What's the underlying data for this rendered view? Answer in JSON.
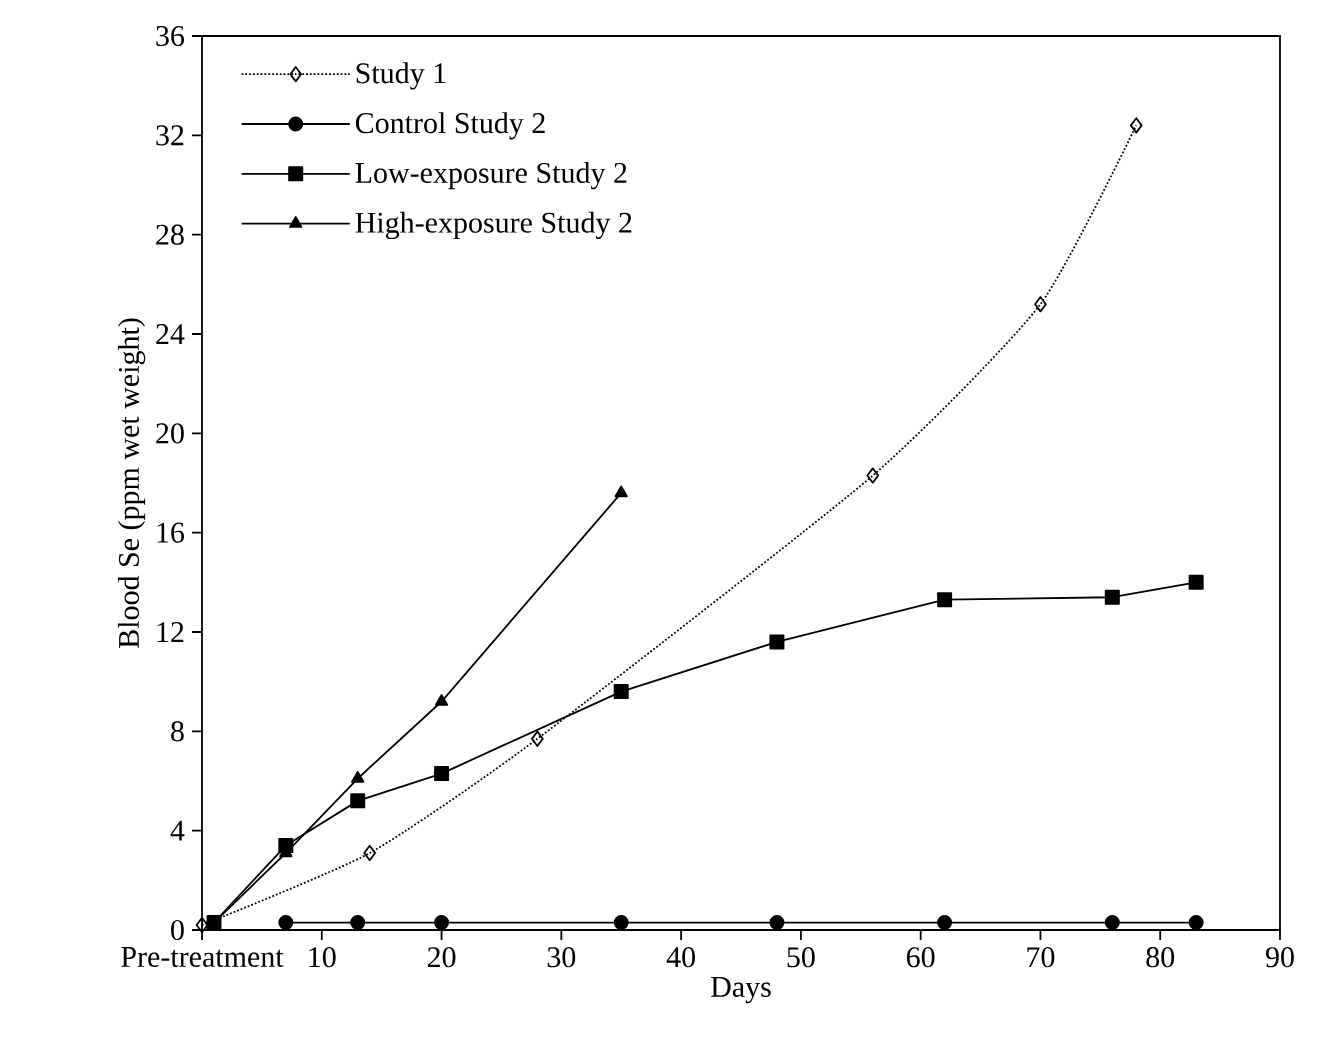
{
  "chart_data": {
    "type": "line",
    "xlabel": "Days",
    "ylabel": "Blood Se (ppm wet weight)",
    "xlim": [
      0,
      90
    ],
    "ylim": [
      0,
      36
    ],
    "xticks": [
      {
        "value": 0,
        "label": "Pre-treatment"
      },
      10,
      20,
      30,
      40,
      50,
      60,
      70,
      80,
      90
    ],
    "yticks": [
      0,
      4,
      8,
      12,
      16,
      20,
      24,
      28,
      32,
      36
    ],
    "grid": false,
    "legend": "top left",
    "series": [
      {
        "name": "Study 1",
        "color": "#000000",
        "marker": "diamond",
        "line_style": "dotted",
        "x": [
          0,
          14,
          28,
          56,
          70,
          78
        ],
        "values": [
          0.2,
          3.1,
          7.7,
          18.3,
          25.2,
          32.4
        ]
      },
      {
        "name": "Control Study 2",
        "color": "#000000",
        "marker": "circle",
        "line_style": "solid",
        "x": [
          7,
          13,
          20,
          35,
          48,
          62,
          76,
          83
        ],
        "values": [
          0.3,
          0.3,
          0.3,
          0.3,
          0.3,
          0.3,
          0.3,
          0.3
        ]
      },
      {
        "name": "Low-exposure Study 2",
        "color": "#000000",
        "marker": "square",
        "line_style": "solid",
        "x": [
          1,
          7,
          13,
          20,
          35,
          48,
          62,
          76,
          83
        ],
        "values": [
          0.3,
          3.4,
          5.2,
          6.3,
          9.6,
          11.6,
          13.3,
          13.4,
          14.0
        ]
      },
      {
        "name": "High-exposure Study 2",
        "color": "#000000",
        "marker": "triangle",
        "line_style": "solid",
        "x": [
          1,
          7,
          13,
          20,
          35
        ],
        "values": [
          0.3,
          3.1,
          6.1,
          9.2,
          17.6
        ]
      }
    ]
  }
}
